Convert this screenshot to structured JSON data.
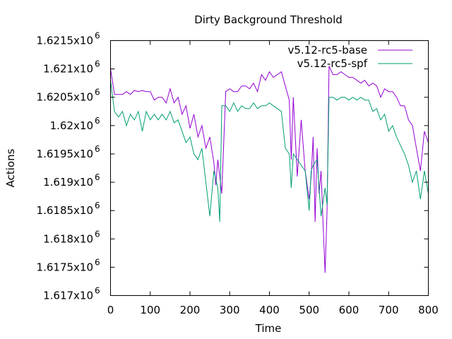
{
  "chart_data": {
    "type": "line",
    "title": "Dirty Background Threshold",
    "xlabel": "Time",
    "ylabel": "Actions",
    "xlim": [
      0,
      800
    ],
    "ylim": [
      1617000,
      1621500
    ],
    "x_ticks": [
      0,
      100,
      200,
      300,
      400,
      500,
      600,
      700,
      800
    ],
    "y_ticks": [
      {
        "value": 1617000,
        "mantissa": "1.617x10",
        "exp": "6"
      },
      {
        "value": 1617500,
        "mantissa": "1.6175x10",
        "exp": "6"
      },
      {
        "value": 1618000,
        "mantissa": "1.618x10",
        "exp": "6"
      },
      {
        "value": 1618500,
        "mantissa": "1.6185x10",
        "exp": "6"
      },
      {
        "value": 1619000,
        "mantissa": "1.619x10",
        "exp": "6"
      },
      {
        "value": 1619500,
        "mantissa": "1.6195x10",
        "exp": "6"
      },
      {
        "value": 1620000,
        "mantissa": "1.62x10",
        "exp": "6"
      },
      {
        "value": 1620500,
        "mantissa": "1.6205x10",
        "exp": "6"
      },
      {
        "value": 1621000,
        "mantissa": "1.621x10",
        "exp": "6"
      },
      {
        "value": 1621500,
        "mantissa": "1.6215x10",
        "exp": "6"
      }
    ],
    "grid": false,
    "legend_position": "top-right",
    "series": [
      {
        "name": "v5.12-rc5-base",
        "color": "#9400d3",
        "points": [
          [
            0,
            1621000
          ],
          [
            10,
            1620550
          ],
          [
            20,
            1620550
          ],
          [
            30,
            1620550
          ],
          [
            40,
            1620600
          ],
          [
            50,
            1620550
          ],
          [
            60,
            1620620
          ],
          [
            70,
            1620600
          ],
          [
            80,
            1620620
          ],
          [
            90,
            1620600
          ],
          [
            100,
            1620600
          ],
          [
            110,
            1620450
          ],
          [
            120,
            1620500
          ],
          [
            130,
            1620500
          ],
          [
            140,
            1620400
          ],
          [
            150,
            1620650
          ],
          [
            160,
            1620400
          ],
          [
            170,
            1620500
          ],
          [
            180,
            1620200
          ],
          [
            190,
            1620350
          ],
          [
            200,
            1619950
          ],
          [
            210,
            1620200
          ],
          [
            220,
            1619800
          ],
          [
            230,
            1620000
          ],
          [
            240,
            1619600
          ],
          [
            250,
            1619800
          ],
          [
            260,
            1619350
          ],
          [
            265,
            1618950
          ],
          [
            270,
            1619400
          ],
          [
            275,
            1619100
          ],
          [
            280,
            1618800
          ],
          [
            290,
            1620600
          ],
          [
            300,
            1620650
          ],
          [
            310,
            1620600
          ],
          [
            320,
            1620600
          ],
          [
            330,
            1620700
          ],
          [
            340,
            1620700
          ],
          [
            350,
            1620650
          ],
          [
            360,
            1620750
          ],
          [
            370,
            1620600
          ],
          [
            380,
            1620900
          ],
          [
            390,
            1620800
          ],
          [
            400,
            1620950
          ],
          [
            410,
            1620850
          ],
          [
            420,
            1620900
          ],
          [
            430,
            1620950
          ],
          [
            440,
            1620700
          ],
          [
            450,
            1620450
          ],
          [
            455,
            1619400
          ],
          [
            460,
            1620500
          ],
          [
            470,
            1619100
          ],
          [
            480,
            1620100
          ],
          [
            490,
            1619200
          ],
          [
            500,
            1618700
          ],
          [
            505,
            1619100
          ],
          [
            510,
            1619800
          ],
          [
            515,
            1618300
          ],
          [
            520,
            1619600
          ],
          [
            525,
            1618800
          ],
          [
            530,
            1619200
          ],
          [
            535,
            1618300
          ],
          [
            540,
            1617400
          ],
          [
            545,
            1618500
          ],
          [
            550,
            1621050
          ],
          [
            560,
            1620900
          ],
          [
            570,
            1620900
          ],
          [
            580,
            1620950
          ],
          [
            590,
            1620900
          ],
          [
            600,
            1620850
          ],
          [
            610,
            1620850
          ],
          [
            620,
            1620800
          ],
          [
            630,
            1620750
          ],
          [
            640,
            1620800
          ],
          [
            650,
            1620700
          ],
          [
            660,
            1620750
          ],
          [
            670,
            1620700
          ],
          [
            680,
            1620500
          ],
          [
            690,
            1620650
          ],
          [
            700,
            1620600
          ],
          [
            710,
            1620600
          ],
          [
            720,
            1620500
          ],
          [
            730,
            1620350
          ],
          [
            740,
            1620350
          ],
          [
            750,
            1620100
          ],
          [
            760,
            1620000
          ],
          [
            770,
            1619600
          ],
          [
            780,
            1619200
          ],
          [
            790,
            1619900
          ],
          [
            800,
            1619700
          ],
          [
            805,
            1618900
          ]
        ]
      },
      {
        "name": "v5.12-rc5-spf",
        "color": "#009e73",
        "points": [
          [
            0,
            1620800
          ],
          [
            10,
            1620250
          ],
          [
            20,
            1620150
          ],
          [
            30,
            1620250
          ],
          [
            40,
            1620000
          ],
          [
            50,
            1620200
          ],
          [
            60,
            1620100
          ],
          [
            70,
            1620250
          ],
          [
            80,
            1619900
          ],
          [
            90,
            1620250
          ],
          [
            100,
            1620100
          ],
          [
            110,
            1620200
          ],
          [
            120,
            1620100
          ],
          [
            130,
            1620200
          ],
          [
            140,
            1620100
          ],
          [
            150,
            1620250
          ],
          [
            160,
            1620050
          ],
          [
            170,
            1620100
          ],
          [
            180,
            1619900
          ],
          [
            190,
            1619700
          ],
          [
            200,
            1619800
          ],
          [
            210,
            1619500
          ],
          [
            220,
            1619400
          ],
          [
            230,
            1619600
          ],
          [
            240,
            1619000
          ],
          [
            250,
            1618400
          ],
          [
            260,
            1619200
          ],
          [
            270,
            1618900
          ],
          [
            275,
            1618300
          ],
          [
            280,
            1620350
          ],
          [
            290,
            1620350
          ],
          [
            300,
            1620250
          ],
          [
            310,
            1620400
          ],
          [
            320,
            1620250
          ],
          [
            330,
            1620350
          ],
          [
            340,
            1620300
          ],
          [
            350,
            1620300
          ],
          [
            360,
            1620400
          ],
          [
            370,
            1620300
          ],
          [
            380,
            1620350
          ],
          [
            390,
            1620350
          ],
          [
            400,
            1620400
          ],
          [
            410,
            1620350
          ],
          [
            420,
            1620300
          ],
          [
            430,
            1620250
          ],
          [
            440,
            1619600
          ],
          [
            450,
            1619500
          ],
          [
            455,
            1618900
          ],
          [
            460,
            1619500
          ],
          [
            470,
            1619400
          ],
          [
            480,
            1619300
          ],
          [
            490,
            1619200
          ],
          [
            500,
            1618500
          ],
          [
            505,
            1619200
          ],
          [
            510,
            1619300
          ],
          [
            520,
            1619400
          ],
          [
            530,
            1618400
          ],
          [
            540,
            1618900
          ],
          [
            545,
            1618600
          ],
          [
            550,
            1620500
          ],
          [
            560,
            1620500
          ],
          [
            570,
            1620450
          ],
          [
            580,
            1620500
          ],
          [
            590,
            1620500
          ],
          [
            600,
            1620450
          ],
          [
            610,
            1620500
          ],
          [
            620,
            1620450
          ],
          [
            630,
            1620500
          ],
          [
            640,
            1620450
          ],
          [
            650,
            1620450
          ],
          [
            660,
            1620250
          ],
          [
            670,
            1620300
          ],
          [
            680,
            1620100
          ],
          [
            690,
            1620200
          ],
          [
            700,
            1619900
          ],
          [
            710,
            1620000
          ],
          [
            720,
            1619800
          ],
          [
            730,
            1619650
          ],
          [
            740,
            1619500
          ],
          [
            750,
            1619300
          ],
          [
            760,
            1619000
          ],
          [
            770,
            1619200
          ],
          [
            780,
            1618700
          ],
          [
            790,
            1619200
          ],
          [
            800,
            1618800
          ],
          [
            805,
            1618300
          ]
        ]
      }
    ]
  }
}
